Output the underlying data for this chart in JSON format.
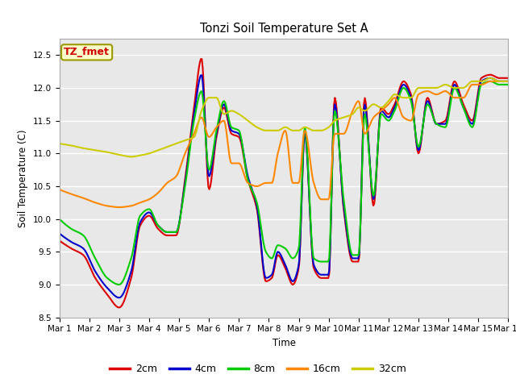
{
  "title": "Tonzi Soil Temperature Set A",
  "xlabel": "Time",
  "ylabel": "Soil Temperature (C)",
  "annotation": "TZ_fmet",
  "annotation_color": "#cc0000",
  "annotation_bg": "#ffffcc",
  "annotation_border": "#999900",
  "ylim": [
    8.5,
    12.75
  ],
  "xlim": [
    0,
    15
  ],
  "bg_color": "#e8e8e8",
  "legend_bg": "#ffffff",
  "series_colors": [
    "#dd0000",
    "#0000cc",
    "#00cc00",
    "#ff8800",
    "#cccc00"
  ],
  "series_labels": [
    "2cm",
    "4cm",
    "8cm",
    "16cm",
    "32cm"
  ],
  "lw": 1.5,
  "xtick_labels": [
    "Mar 1",
    "Mar 2",
    "Mar 3",
    "Mar 4",
    "Mar 5",
    "Mar 6",
    "Mar 7",
    "Mar 8",
    "Mar 9",
    "Mar 10",
    "Mar 11",
    "Mar 12",
    "Mar 13",
    "Mar 14",
    "Mar 15",
    "Mar 16"
  ],
  "num_points": 480,
  "ctrl_x": [
    0,
    0.4,
    0.8,
    1.2,
    1.6,
    2.0,
    2.4,
    2.7,
    3.0,
    3.3,
    3.6,
    3.9,
    4.2,
    4.5,
    4.75,
    5.0,
    5.25,
    5.5,
    5.75,
    6.0,
    6.3,
    6.6,
    6.9,
    7.1,
    7.3,
    7.55,
    7.8,
    8.0,
    8.2,
    8.5,
    8.75,
    9.0,
    9.2,
    9.5,
    9.8,
    10.0,
    10.2,
    10.5,
    10.75,
    11.0,
    11.2,
    11.5,
    11.75,
    12.0,
    12.3,
    12.6,
    12.9,
    13.2,
    13.5,
    13.8,
    14.1,
    14.4,
    14.7,
    15.0
  ],
  "cy2": [
    9.67,
    9.55,
    9.45,
    9.1,
    8.85,
    8.65,
    9.1,
    9.9,
    10.05,
    9.85,
    9.75,
    9.75,
    10.6,
    11.7,
    12.45,
    10.45,
    11.25,
    11.7,
    11.3,
    11.25,
    10.6,
    10.15,
    9.05,
    9.1,
    9.45,
    9.25,
    9.0,
    9.25,
    11.35,
    9.25,
    9.1,
    9.1,
    11.85,
    10.15,
    9.35,
    9.35,
    11.85,
    10.2,
    11.7,
    11.6,
    11.75,
    12.1,
    11.9,
    11.0,
    11.85,
    11.45,
    11.5,
    12.1,
    11.75,
    11.5,
    12.15,
    12.2,
    12.15,
    12.15
  ],
  "cy4": [
    9.78,
    9.65,
    9.55,
    9.2,
    8.95,
    8.8,
    9.2,
    9.95,
    10.1,
    9.9,
    9.8,
    9.8,
    10.55,
    11.6,
    12.2,
    10.65,
    11.3,
    11.75,
    11.35,
    11.3,
    10.65,
    10.2,
    9.1,
    9.15,
    9.5,
    9.3,
    9.05,
    9.3,
    11.3,
    9.3,
    9.15,
    9.15,
    11.75,
    10.2,
    9.4,
    9.4,
    11.75,
    10.3,
    11.65,
    11.55,
    11.7,
    12.05,
    11.85,
    11.05,
    11.8,
    11.45,
    11.45,
    12.05,
    11.7,
    11.45,
    12.1,
    12.15,
    12.1,
    12.1
  ],
  "cy8": [
    10.0,
    9.85,
    9.75,
    9.4,
    9.1,
    9.0,
    9.4,
    10.05,
    10.15,
    9.9,
    9.8,
    9.8,
    10.5,
    11.5,
    11.95,
    10.75,
    11.35,
    11.8,
    11.4,
    11.35,
    10.6,
    10.25,
    9.5,
    9.4,
    9.6,
    9.55,
    9.4,
    9.55,
    11.4,
    9.4,
    9.35,
    9.35,
    11.65,
    10.3,
    9.45,
    9.45,
    11.6,
    10.35,
    11.6,
    11.5,
    11.65,
    12.0,
    11.8,
    11.1,
    11.75,
    11.45,
    11.4,
    12.0,
    11.7,
    11.4,
    12.05,
    12.1,
    12.05,
    12.05
  ],
  "cy16": [
    10.45,
    10.38,
    10.32,
    10.25,
    10.2,
    10.18,
    10.2,
    10.25,
    10.3,
    10.4,
    10.55,
    10.65,
    11.0,
    11.3,
    11.55,
    11.25,
    11.4,
    11.5,
    10.85,
    10.85,
    10.55,
    10.5,
    10.55,
    10.55,
    11.0,
    11.35,
    10.55,
    10.55,
    11.35,
    10.55,
    10.3,
    10.3,
    11.3,
    11.3,
    11.65,
    11.8,
    11.3,
    11.55,
    11.65,
    11.75,
    11.85,
    11.55,
    11.5,
    11.9,
    11.95,
    11.9,
    11.95,
    11.85,
    11.85,
    12.05,
    12.05,
    12.1,
    12.1,
    12.1
  ],
  "cy32": [
    11.15,
    11.12,
    11.08,
    11.05,
    11.02,
    10.98,
    10.95,
    10.97,
    11.0,
    11.05,
    11.1,
    11.15,
    11.2,
    11.25,
    11.65,
    11.85,
    11.85,
    11.6,
    11.65,
    11.6,
    11.5,
    11.4,
    11.35,
    11.35,
    11.35,
    11.4,
    11.35,
    11.35,
    11.4,
    11.35,
    11.35,
    11.4,
    11.5,
    11.55,
    11.6,
    11.7,
    11.65,
    11.75,
    11.7,
    11.8,
    11.9,
    11.85,
    11.85,
    12.0,
    12.0,
    12.0,
    12.05,
    12.0,
    12.0,
    12.1,
    12.1,
    12.15,
    12.1,
    12.1
  ]
}
